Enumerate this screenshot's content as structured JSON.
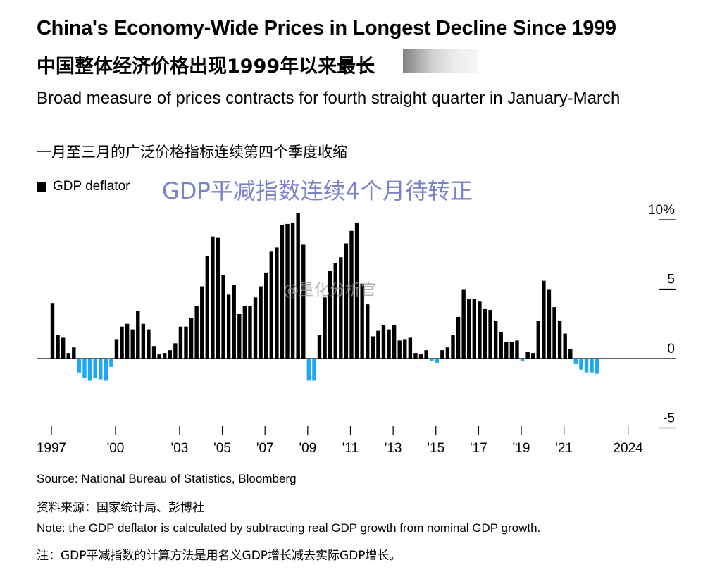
{
  "title": "China's Economy-Wide Prices in Longest Decline Since 1999",
  "title_cn": "中国整体经济价格出现1999年以来最长",
  "subtitle": "Broad measure of prices contracts for fourth straight quarter in January-March",
  "subtitle_cn": "一月至三月的广泛价格指标连续第四个季度收缩",
  "legend_label": "GDP deflator",
  "overlay_text": "GDP平减指数连续4个月待转正",
  "watermark": "@量化分析官",
  "footer": {
    "source": "Source: National Bureau of Statistics, Bloomberg",
    "source_cn": "资料来源：国家统计局、彭博社",
    "note": "Note: the GDP deflator is calculated by subtracting real GDP growth from nominal GDP growth.",
    "note_cn": "注：GDP平减指数的计算方法是用名义GDP增长减去实际GDP增长。"
  },
  "colors": {
    "positive": "#000000",
    "negative": "#1ea7f2",
    "overlay": "#7b82cc"
  },
  "chart_data": {
    "type": "bar",
    "start": "1997 Q1",
    "frequency": "quarterly",
    "xlabel": "",
    "ylabel": "",
    "ylim": [
      -5,
      10
    ],
    "yticks": [
      {
        "value": 10,
        "label": "10%"
      },
      {
        "value": 5,
        "label": "5"
      },
      {
        "value": 0,
        "label": "0"
      },
      {
        "value": -5,
        "label": "-5"
      }
    ],
    "xticks": [
      {
        "year": 1997,
        "label": "1997"
      },
      {
        "year": 2000,
        "label": "'00"
      },
      {
        "year": 2003,
        "label": "'03"
      },
      {
        "year": 2005,
        "label": "'05"
      },
      {
        "year": 2007,
        "label": "'07"
      },
      {
        "year": 2009,
        "label": "'09"
      },
      {
        "year": 2011,
        "label": "'11"
      },
      {
        "year": 2013,
        "label": "'13"
      },
      {
        "year": 2015,
        "label": "'15"
      },
      {
        "year": 2017,
        "label": "'17"
      },
      {
        "year": 2019,
        "label": "'19"
      },
      {
        "year": 2021,
        "label": "'21"
      },
      {
        "year": 2024,
        "label": "2024"
      }
    ],
    "series": [
      {
        "name": "GDP deflator",
        "values": [
          4.0,
          1.7,
          1.5,
          0.4,
          0.8,
          -1.0,
          -1.4,
          -1.6,
          -1.4,
          -1.5,
          -1.6,
          -0.6,
          1.4,
          2.3,
          2.5,
          2.1,
          3.4,
          2.5,
          2.1,
          0.9,
          0.3,
          0.4,
          0.6,
          1.1,
          2.3,
          2.3,
          2.9,
          3.8,
          5.2,
          7.4,
          8.8,
          8.7,
          6.0,
          4.6,
          5.3,
          3.2,
          3.8,
          3.8,
          4.4,
          5.2,
          6.2,
          7.7,
          8.0,
          9.6,
          9.7,
          9.8,
          10.5,
          8.2,
          -1.6,
          -1.6,
          1.7,
          4.4,
          6.3,
          6.9,
          7.3,
          8.3,
          9.2,
          9.8,
          5.4,
          3.9,
          1.6,
          2.0,
          2.4,
          2.1,
          2.4,
          1.3,
          1.4,
          1.5,
          0.4,
          0.3,
          0.6,
          -0.2,
          -0.3,
          0.6,
          0.8,
          1.7,
          3.0,
          5.0,
          4.3,
          4.3,
          4.1,
          3.6,
          3.5,
          2.7,
          1.9,
          1.2,
          1.2,
          1.3,
          -0.2,
          0.5,
          0.4,
          2.7,
          5.6,
          5.0,
          3.7,
          2.7,
          1.8,
          0.7,
          -0.4,
          -0.8,
          -1.0,
          -1.0,
          -1.1
        ]
      }
    ]
  }
}
